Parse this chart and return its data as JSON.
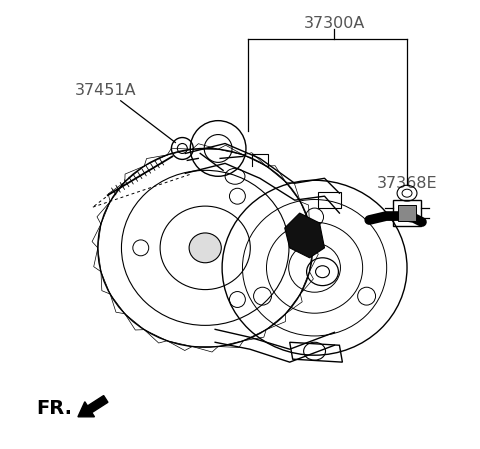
{
  "background_color": "#ffffff",
  "label_color": "#555555",
  "line_color": "#000000",
  "label_37300A": "37300A",
  "label_37451A": "37451A",
  "label_37368E": "37368E",
  "label_fr": "FR.",
  "figsize": [
    4.8,
    4.49
  ],
  "dpi": 100,
  "lw": 1.0,
  "label_fontsize": 11.5
}
